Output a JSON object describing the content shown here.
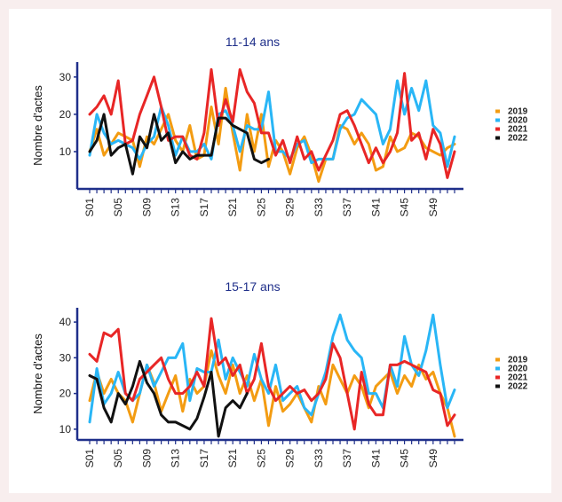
{
  "chart_data": [
    {
      "type": "line",
      "title": "11-14 ans",
      "ylabel": "Nombre d'actes",
      "xlabel": "",
      "ylim": [
        0,
        34
      ],
      "yticks": [
        10,
        20,
        30
      ],
      "xtick_labels": [
        "S01",
        "S05",
        "S09",
        "S13",
        "S17",
        "S21",
        "S25",
        "S29",
        "S33",
        "S37",
        "S41",
        "S45",
        "S49"
      ],
      "legend": "right",
      "series": [
        {
          "name": "2019",
          "color": "#f39c12",
          "values": [
            10,
            16,
            9,
            12,
            15,
            14,
            13,
            6,
            14,
            12,
            16,
            20,
            13,
            10,
            17,
            8,
            9,
            22,
            12,
            27,
            15,
            5,
            20,
            10,
            20,
            6,
            13,
            10,
            4,
            11,
            14,
            9,
            2,
            8,
            8,
            17,
            16,
            12,
            15,
            12,
            5,
            6,
            14,
            10,
            11,
            15,
            14,
            11,
            10,
            9,
            11,
            12
          ]
        },
        {
          "name": "2020",
          "color": "#29b6f6",
          "values": [
            9,
            20,
            15,
            12,
            13,
            12,
            11,
            8,
            12,
            14,
            22,
            17,
            9,
            14,
            10,
            10,
            12,
            8,
            20,
            21,
            17,
            10,
            17,
            16,
            16,
            26,
            10,
            10,
            8,
            12,
            13,
            7,
            8,
            8,
            8,
            16,
            19,
            20,
            24,
            22,
            20,
            12,
            16,
            29,
            20,
            27,
            21,
            29,
            17,
            15,
            6,
            14
          ]
        },
        {
          "name": "2021",
          "color": "#e82626",
          "values": [
            20,
            22,
            25,
            20,
            29,
            12,
            13,
            20,
            25,
            30,
            22,
            13,
            14,
            14,
            9,
            8,
            15,
            32,
            17,
            24,
            18,
            32,
            26,
            23,
            15,
            15,
            9,
            13,
            7,
            14,
            8,
            10,
            5,
            9,
            13,
            20,
            21,
            17,
            12,
            7,
            11,
            7,
            10,
            15,
            31,
            13,
            15,
            8,
            16,
            12,
            3,
            10
          ]
        },
        {
          "name": "2022",
          "color": "#111111",
          "values": [
            10,
            13,
            20,
            9,
            11,
            12,
            4,
            14,
            11,
            20,
            13,
            15,
            7,
            10,
            8,
            9,
            9,
            9,
            19,
            19,
            17,
            16,
            15,
            8,
            7,
            8
          ]
        }
      ]
    },
    {
      "type": "line",
      "title": "15-17 ans",
      "ylabel": "Nombre d'actes",
      "xlabel": "",
      "ylim": [
        7,
        44
      ],
      "yticks": [
        10,
        20,
        30,
        40
      ],
      "xtick_labels": [
        "S01",
        "S05",
        "S09",
        "S13",
        "S17",
        "S21",
        "S25",
        "S29",
        "S33",
        "S37",
        "S41",
        "S45",
        "S49"
      ],
      "legend": "right",
      "series": [
        {
          "name": "2019",
          "color": "#f39c12",
          "values": [
            18,
            26,
            20,
            24,
            20,
            18,
            12,
            20,
            28,
            23,
            15,
            20,
            25,
            15,
            24,
            20,
            22,
            32,
            25,
            20,
            28,
            20,
            25,
            18,
            24,
            11,
            22,
            15,
            17,
            20,
            16,
            12,
            22,
            17,
            28,
            24,
            20,
            25,
            22,
            16,
            22,
            24,
            26,
            20,
            25,
            22,
            28,
            24,
            26,
            20,
            16,
            8
          ]
        },
        {
          "name": "2020",
          "color": "#29b6f6",
          "values": [
            12,
            27,
            17,
            20,
            26,
            20,
            18,
            20,
            28,
            22,
            26,
            30,
            30,
            34,
            18,
            27,
            26,
            26,
            35,
            24,
            30,
            26,
            22,
            31,
            24,
            20,
            28,
            18,
            20,
            22,
            16,
            14,
            20,
            26,
            36,
            42,
            35,
            32,
            30,
            20,
            20,
            16,
            28,
            22,
            36,
            28,
            25,
            32,
            42,
            28,
            16,
            21
          ]
        },
        {
          "name": "2021",
          "color": "#e82626",
          "values": [
            31,
            29,
            37,
            36,
            38,
            20,
            18,
            24,
            26,
            28,
            30,
            24,
            20,
            20,
            22,
            26,
            22,
            41,
            28,
            30,
            25,
            28,
            20,
            24,
            34,
            22,
            18,
            20,
            22,
            20,
            21,
            18,
            20,
            24,
            34,
            30,
            20,
            10,
            26,
            17,
            14,
            14,
            28,
            28,
            29,
            28,
            27,
            26,
            21,
            20,
            11,
            14
          ]
        },
        {
          "name": "2022",
          "color": "#111111",
          "values": [
            25,
            24,
            16,
            12,
            20,
            17,
            22,
            29,
            23,
            20,
            14,
            12,
            12,
            11,
            10,
            13,
            19,
            26,
            8,
            16,
            18,
            16,
            20
          ]
        }
      ]
    }
  ]
}
